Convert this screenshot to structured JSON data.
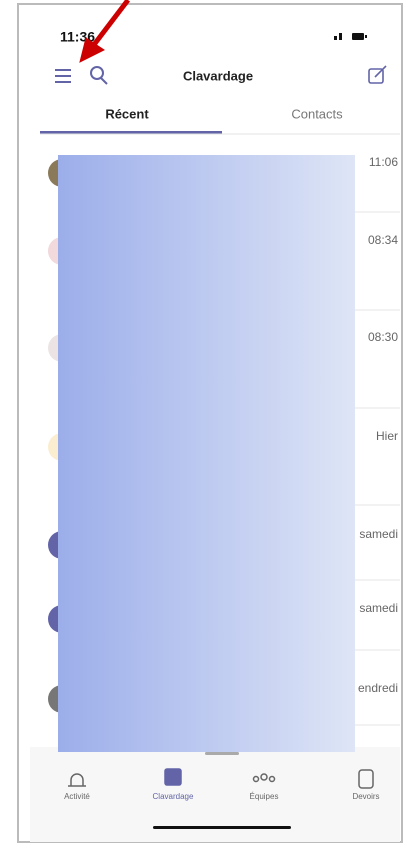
{
  "status_bar": {
    "time": "11:36"
  },
  "header": {
    "title": "Clavardage"
  },
  "tabs": [
    "Récent",
    "Contacts"
  ],
  "chat_times": [
    "11:06",
    "08:34",
    "08:30",
    "Hier",
    "samedi",
    "samedi",
    "endredi"
  ],
  "nav": [
    "Activité",
    "Clavardage",
    "Équipes",
    "Devoirs"
  ]
}
